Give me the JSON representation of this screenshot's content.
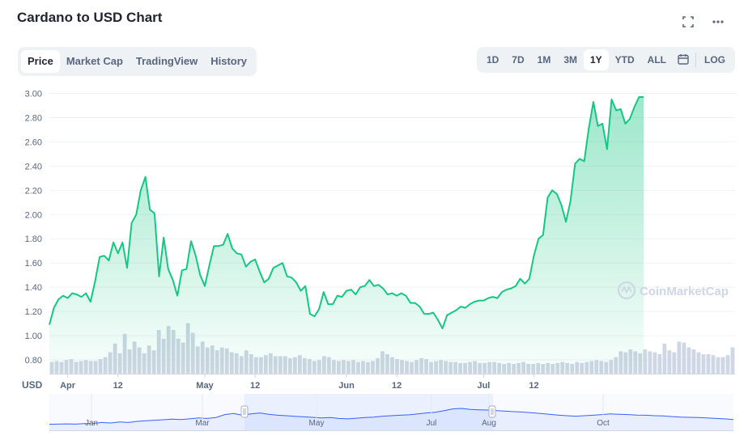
{
  "header": {
    "title": "Cardano to USD Chart",
    "fullscreen_icon": "fullscreen-icon",
    "more_icon": "more-options-icon"
  },
  "tabs": [
    {
      "label": "Price",
      "active": true
    },
    {
      "label": "Market Cap",
      "active": false
    },
    {
      "label": "TradingView",
      "active": false
    },
    {
      "label": "History",
      "active": false
    }
  ],
  "ranges": [
    {
      "label": "1D",
      "active": false
    },
    {
      "label": "7D",
      "active": false
    },
    {
      "label": "1M",
      "active": false
    },
    {
      "label": "3M",
      "active": false
    },
    {
      "label": "1Y",
      "active": true
    },
    {
      "label": "YTD",
      "active": false
    },
    {
      "label": "ALL",
      "active": false
    }
  ],
  "log_label": "LOG",
  "calendar_icon": "calendar-icon",
  "watermark": "CoinMarketCap",
  "colors": {
    "line": "#16c784",
    "fill": "#16c784",
    "volume": "#cfd6e4",
    "navigator_line": "#3861fb",
    "navigator_mask": "#e8edfd"
  },
  "chart_data": {
    "type": "area",
    "title": "Cardano to USD Chart",
    "ylabel": "USD",
    "ylim": [
      0.7,
      3.05
    ],
    "yticks": [
      0.8,
      1.0,
      1.2,
      1.4,
      1.6,
      1.8,
      2.0,
      2.2,
      2.4,
      2.6,
      2.8,
      3.0
    ],
    "ytick_labels": [
      "0.80",
      "1.00",
      "1.20",
      "1.40",
      "1.60",
      "1.80",
      "2.00",
      "2.20",
      "2.40",
      "2.60",
      "2.80",
      "3.00"
    ],
    "x_tick_labels": [
      {
        "label": "Apr",
        "date": "2021-04-01"
      },
      {
        "label": "12",
        "date": "2021-04-12"
      },
      {
        "label": "May",
        "date": "2021-05-01"
      },
      {
        "label": "12",
        "date": "2021-05-12"
      },
      {
        "label": "Jun",
        "date": "2021-06-01"
      },
      {
        "label": "12",
        "date": "2021-06-12"
      },
      {
        "label": "Jul",
        "date": "2021-07-01"
      },
      {
        "label": "12",
        "date": "2021-07-12"
      }
    ],
    "x_start": "2021-03-28",
    "x_end": "2021-08-25",
    "grid": true,
    "series": [
      {
        "name": "Price",
        "points": [
          [
            "2021-03-28",
            1.09
          ],
          [
            "2021-03-29",
            1.23
          ],
          [
            "2021-03-30",
            1.3
          ],
          [
            "2021-03-31",
            1.33
          ],
          [
            "2021-04-01",
            1.31
          ],
          [
            "2021-04-02",
            1.35
          ],
          [
            "2021-04-03",
            1.34
          ],
          [
            "2021-04-04",
            1.32
          ],
          [
            "2021-04-05",
            1.35
          ],
          [
            "2021-04-06",
            1.28
          ],
          [
            "2021-04-07",
            1.45
          ],
          [
            "2021-04-08",
            1.65
          ],
          [
            "2021-04-09",
            1.66
          ],
          [
            "2021-04-10",
            1.62
          ],
          [
            "2021-04-11",
            1.77
          ],
          [
            "2021-04-12",
            1.68
          ],
          [
            "2021-04-13",
            1.77
          ],
          [
            "2021-04-14",
            1.56
          ],
          [
            "2021-04-15",
            1.93
          ],
          [
            "2021-04-16",
            2.0
          ],
          [
            "2021-04-17",
            2.2
          ],
          [
            "2021-04-18",
            2.31
          ],
          [
            "2021-04-19",
            2.04
          ],
          [
            "2021-04-20",
            2.01
          ],
          [
            "2021-04-21",
            1.49
          ],
          [
            "2021-04-22",
            1.81
          ],
          [
            "2021-04-23",
            1.55
          ],
          [
            "2021-04-24",
            1.46
          ],
          [
            "2021-04-25",
            1.33
          ],
          [
            "2021-04-26",
            1.54
          ],
          [
            "2021-04-27",
            1.55
          ],
          [
            "2021-04-28",
            1.78
          ],
          [
            "2021-04-29",
            1.66
          ],
          [
            "2021-04-30",
            1.5
          ],
          [
            "2021-05-01",
            1.41
          ],
          [
            "2021-05-02",
            1.58
          ],
          [
            "2021-05-03",
            1.74
          ],
          [
            "2021-05-04",
            1.74
          ],
          [
            "2021-05-05",
            1.75
          ],
          [
            "2021-05-06",
            1.84
          ],
          [
            "2021-05-07",
            1.72
          ],
          [
            "2021-05-08",
            1.68
          ],
          [
            "2021-05-09",
            1.67
          ],
          [
            "2021-05-10",
            1.57
          ],
          [
            "2021-05-11",
            1.61
          ],
          [
            "2021-05-12",
            1.63
          ],
          [
            "2021-05-13",
            1.53
          ],
          [
            "2021-05-14",
            1.44
          ],
          [
            "2021-05-15",
            1.47
          ],
          [
            "2021-05-16",
            1.56
          ],
          [
            "2021-05-17",
            1.58
          ],
          [
            "2021-05-18",
            1.6
          ],
          [
            "2021-05-19",
            1.49
          ],
          [
            "2021-05-20",
            1.48
          ],
          [
            "2021-05-21",
            1.44
          ],
          [
            "2021-05-22",
            1.37
          ],
          [
            "2021-05-23",
            1.41
          ],
          [
            "2021-05-24",
            1.18
          ],
          [
            "2021-05-25",
            1.16
          ],
          [
            "2021-05-26",
            1.22
          ],
          [
            "2021-05-27",
            1.36
          ],
          [
            "2021-05-28",
            1.26
          ],
          [
            "2021-05-29",
            1.26
          ],
          [
            "2021-05-30",
            1.33
          ],
          [
            "2021-05-31",
            1.32
          ],
          [
            "2021-06-01",
            1.37
          ],
          [
            "2021-06-02",
            1.38
          ],
          [
            "2021-06-03",
            1.34
          ],
          [
            "2021-06-04",
            1.4
          ],
          [
            "2021-06-05",
            1.41
          ],
          [
            "2021-06-06",
            1.46
          ],
          [
            "2021-06-07",
            1.41
          ],
          [
            "2021-06-08",
            1.42
          ],
          [
            "2021-06-09",
            1.39
          ],
          [
            "2021-06-10",
            1.34
          ],
          [
            "2021-06-11",
            1.35
          ],
          [
            "2021-06-12",
            1.33
          ],
          [
            "2021-06-13",
            1.35
          ],
          [
            "2021-06-14",
            1.33
          ],
          [
            "2021-06-15",
            1.27
          ],
          [
            "2021-06-16",
            1.27
          ],
          [
            "2021-06-17",
            1.24
          ],
          [
            "2021-06-18",
            1.18
          ],
          [
            "2021-06-19",
            1.18
          ],
          [
            "2021-06-20",
            1.19
          ],
          [
            "2021-06-21",
            1.13
          ],
          [
            "2021-06-22",
            1.06
          ],
          [
            "2021-06-23",
            1.17
          ],
          [
            "2021-06-24",
            1.19
          ],
          [
            "2021-06-25",
            1.21
          ],
          [
            "2021-06-26",
            1.24
          ],
          [
            "2021-06-27",
            1.23
          ],
          [
            "2021-06-28",
            1.26
          ],
          [
            "2021-06-29",
            1.28
          ],
          [
            "2021-06-30",
            1.29
          ],
          [
            "2021-07-01",
            1.29
          ],
          [
            "2021-07-02",
            1.31
          ],
          [
            "2021-07-03",
            1.32
          ],
          [
            "2021-07-04",
            1.31
          ],
          [
            "2021-07-05",
            1.36
          ],
          [
            "2021-07-06",
            1.38
          ],
          [
            "2021-07-07",
            1.39
          ],
          [
            "2021-07-08",
            1.41
          ],
          [
            "2021-07-09",
            1.47
          ],
          [
            "2021-07-10",
            1.43
          ],
          [
            "2021-07-11",
            1.47
          ],
          [
            "2021-07-12",
            1.66
          ],
          [
            "2021-07-13",
            1.8
          ],
          [
            "2021-07-14",
            1.83
          ],
          [
            "2021-07-15",
            2.14
          ],
          [
            "2021-07-16",
            2.2
          ],
          [
            "2021-07-17",
            2.17
          ],
          [
            "2021-07-18",
            2.08
          ],
          [
            "2021-07-19",
            1.94
          ],
          [
            "2021-07-20",
            2.11
          ],
          [
            "2021-07-21",
            2.42
          ],
          [
            "2021-07-22",
            2.46
          ],
          [
            "2021-07-23",
            2.44
          ],
          [
            "2021-07-24",
            2.71
          ],
          [
            "2021-07-25",
            2.93
          ],
          [
            "2021-07-26",
            2.73
          ],
          [
            "2021-07-27",
            2.75
          ],
          [
            "2021-07-28",
            2.54
          ],
          [
            "2021-07-29",
            2.95
          ],
          [
            "2021-07-30",
            2.86
          ],
          [
            "2021-07-31",
            2.87
          ],
          [
            "2021-08-01",
            2.75
          ],
          [
            "2021-08-02",
            2.79
          ],
          [
            "2021-08-03",
            2.89
          ],
          [
            "2021-08-04",
            2.97
          ],
          [
            "2021-08-05",
            2.97
          ]
        ]
      },
      {
        "name": "Volume",
        "values_relative": [
          0.12,
          0.13,
          0.12,
          0.14,
          0.15,
          0.12,
          0.13,
          0.14,
          0.13,
          0.13,
          0.15,
          0.17,
          0.22,
          0.31,
          0.21,
          0.41,
          0.25,
          0.33,
          0.27,
          0.21,
          0.29,
          0.24,
          0.45,
          0.36,
          0.49,
          0.45,
          0.36,
          0.32,
          0.52,
          0.42,
          0.28,
          0.33,
          0.27,
          0.29,
          0.24,
          0.27,
          0.26,
          0.22,
          0.21,
          0.18,
          0.24,
          0.2,
          0.17,
          0.17,
          0.19,
          0.21,
          0.18,
          0.18,
          0.18,
          0.16,
          0.17,
          0.19,
          0.16,
          0.15,
          0.13,
          0.14,
          0.18,
          0.17,
          0.14,
          0.13,
          0.14,
          0.13,
          0.14,
          0.12,
          0.13,
          0.12,
          0.13,
          0.16,
          0.23,
          0.2,
          0.17,
          0.15,
          0.14,
          0.13,
          0.12,
          0.14,
          0.16,
          0.15,
          0.12,
          0.13,
          0.14,
          0.13,
          0.12,
          0.12,
          0.11,
          0.11,
          0.12,
          0.13,
          0.11,
          0.11,
          0.12,
          0.12,
          0.11,
          0.1,
          0.11,
          0.1,
          0.11,
          0.12,
          0.1,
          0.1,
          0.11,
          0.1,
          0.11,
          0.1,
          0.11,
          0.12,
          0.11,
          0.1,
          0.12,
          0.11,
          0.12,
          0.13,
          0.14,
          0.13,
          0.12,
          0.14,
          0.17,
          0.23,
          0.22,
          0.25,
          0.23,
          0.21,
          0.25,
          0.23,
          0.22,
          0.2,
          0.31,
          0.24,
          0.22,
          0.33,
          0.32,
          0.27,
          0.25,
          0.22,
          0.2,
          0.2,
          0.19,
          0.17,
          0.17,
          0.19,
          0.27
        ]
      }
    ]
  },
  "navigator": {
    "x_tick_labels": [
      "Jan",
      "Mar",
      "May",
      "Jul",
      "Aug",
      "Oct"
    ],
    "values_relative": [
      0.12,
      0.13,
      0.14,
      0.13,
      0.15,
      0.16,
      0.2,
      0.18,
      0.22,
      0.2,
      0.25,
      0.28,
      0.3,
      0.32,
      0.35,
      0.33,
      0.36,
      0.4,
      0.38,
      0.42,
      0.55,
      0.6,
      0.52,
      0.58,
      0.62,
      0.56,
      0.52,
      0.5,
      0.47,
      0.45,
      0.43,
      0.4,
      0.42,
      0.38,
      0.36,
      0.39,
      0.42,
      0.44,
      0.48,
      0.5,
      0.52,
      0.54,
      0.58,
      0.62,
      0.65,
      0.72,
      0.8,
      0.82,
      0.78,
      0.76,
      0.75,
      0.72,
      0.7,
      0.68,
      0.66,
      0.63,
      0.6,
      0.56,
      0.53,
      0.5,
      0.48,
      0.5,
      0.52,
      0.55,
      0.58,
      0.56,
      0.55,
      0.53,
      0.52,
      0.5,
      0.49,
      0.46,
      0.44,
      0.43,
      0.42,
      0.4,
      0.38,
      0.36,
      0.33
    ]
  }
}
